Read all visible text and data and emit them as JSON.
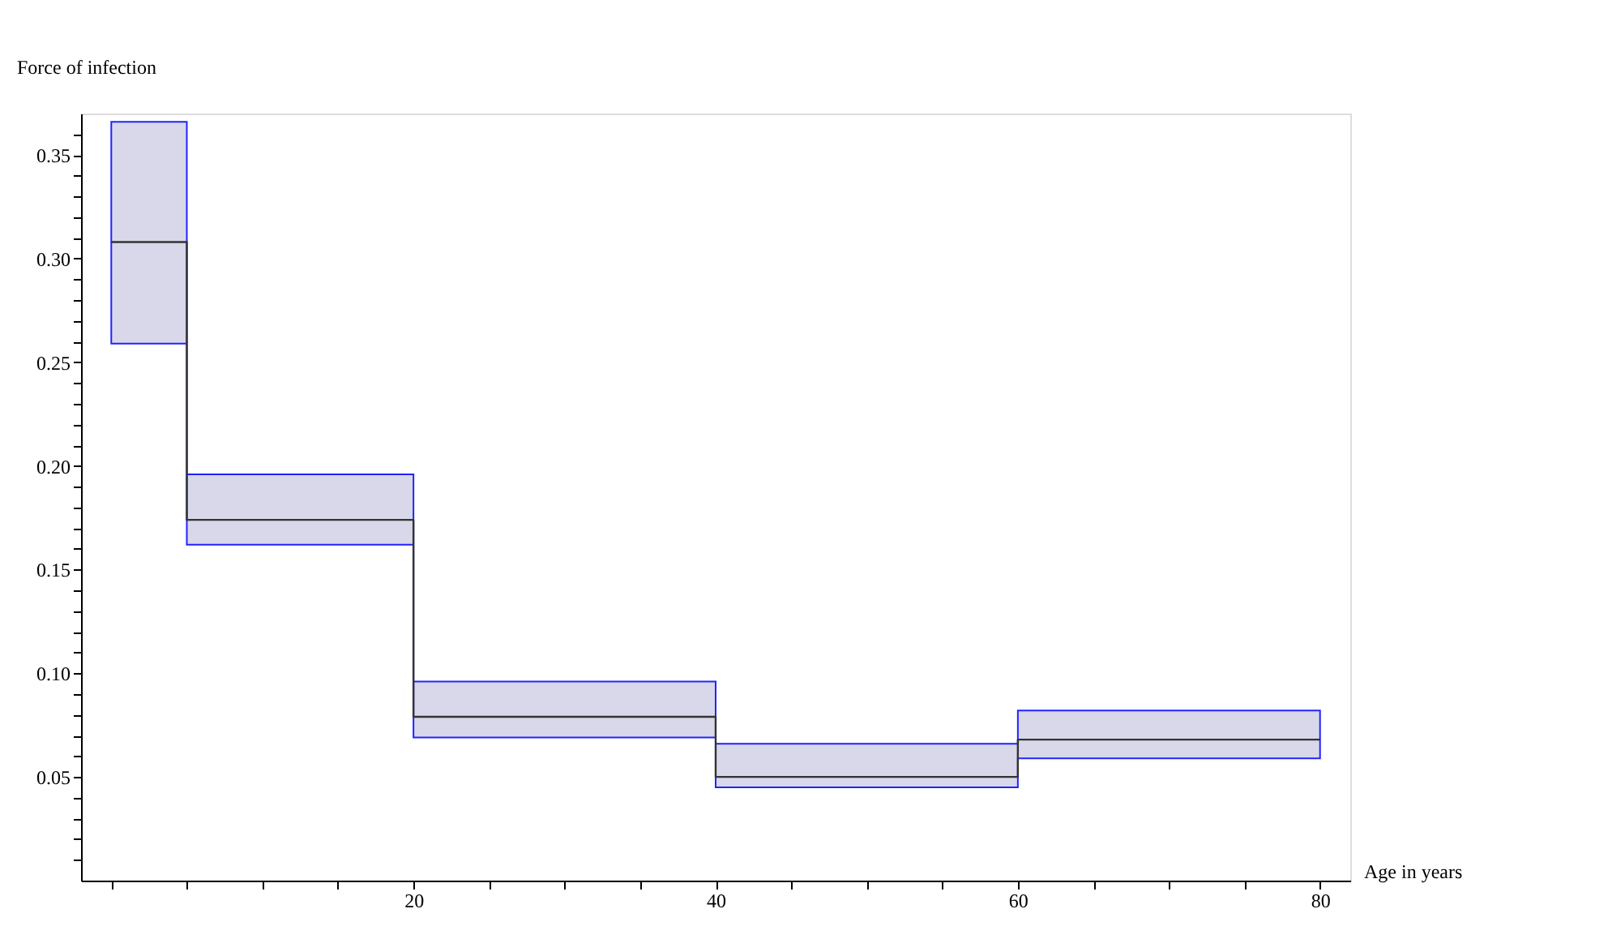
{
  "chart_data": {
    "type": "step",
    "xlabel": "Age in years",
    "ylabel": "Force of infection",
    "x": [
      0,
      5,
      20,
      40,
      60,
      80
    ],
    "series": [
      {
        "color": "#333333",
        "values": [
          0.308,
          0.174,
          0.079,
          0.05,
          0.068,
          0.068
        ],
        "lower": [
          0.259,
          0.162,
          0.069,
          0.045,
          0.059,
          0.059
        ],
        "upper": [
          0.366,
          0.196,
          0.096,
          0.066,
          0.082,
          0.082
        ]
      }
    ],
    "xlim": [
      -2,
      82
    ],
    "ylim": [
      0,
      0.37
    ],
    "xticks": [
      {
        "value": 0,
        "label": null
      },
      {
        "value": 5,
        "label": null
      },
      {
        "value": 10,
        "label": null
      },
      {
        "value": 15,
        "label": null
      },
      20,
      {
        "value": 25,
        "label": null
      },
      {
        "value": 30,
        "label": null
      },
      {
        "value": 35,
        "label": null
      },
      40,
      {
        "value": 45,
        "label": null
      },
      {
        "value": 50,
        "label": null
      },
      {
        "value": 55,
        "label": null
      },
      60,
      {
        "value": 65,
        "label": null
      },
      {
        "value": 70,
        "label": null
      },
      {
        "value": 75,
        "label": null
      },
      80
    ],
    "yticks": [
      {
        "value": 0.01,
        "label": null
      },
      {
        "value": 0.02,
        "label": null
      },
      {
        "value": 0.03,
        "label": null
      },
      {
        "value": 0.04,
        "label": null
      },
      {
        "value": 0.05,
        "label": "0.05"
      },
      {
        "value": 0.06,
        "label": null
      },
      {
        "value": 0.07,
        "label": null
      },
      {
        "value": 0.08,
        "label": null
      },
      {
        "value": 0.09,
        "label": null
      },
      {
        "value": 0.1,
        "label": "0.10"
      },
      {
        "value": 0.11,
        "label": null
      },
      {
        "value": 0.12,
        "label": null
      },
      {
        "value": 0.13,
        "label": null
      },
      {
        "value": 0.14,
        "label": null
      },
      {
        "value": 0.15,
        "label": "0.15"
      },
      {
        "value": 0.16,
        "label": null
      },
      {
        "value": 0.17,
        "label": null
      },
      {
        "value": 0.18,
        "label": null
      },
      {
        "value": 0.19,
        "label": null
      },
      {
        "value": 0.2,
        "label": "0.20"
      },
      {
        "value": 0.21,
        "label": null
      },
      {
        "value": 0.22,
        "label": null
      },
      {
        "value": 0.23,
        "label": null
      },
      {
        "value": 0.24,
        "label": null
      },
      {
        "value": 0.25,
        "label": "0.25"
      },
      {
        "value": 0.26,
        "label": null
      },
      {
        "value": 0.27,
        "label": null
      },
      {
        "value": 0.28,
        "label": null
      },
      {
        "value": 0.29,
        "label": null
      },
      {
        "value": 0.3,
        "label": "0.30"
      },
      {
        "value": 0.31,
        "label": null
      },
      {
        "value": 0.32,
        "label": null
      },
      {
        "value": 0.33,
        "label": null
      },
      {
        "value": 0.34,
        "label": null
      },
      {
        "value": 0.35,
        "label": "0.35"
      },
      {
        "value": 0.36,
        "label": null
      }
    ],
    "grid": false
  }
}
